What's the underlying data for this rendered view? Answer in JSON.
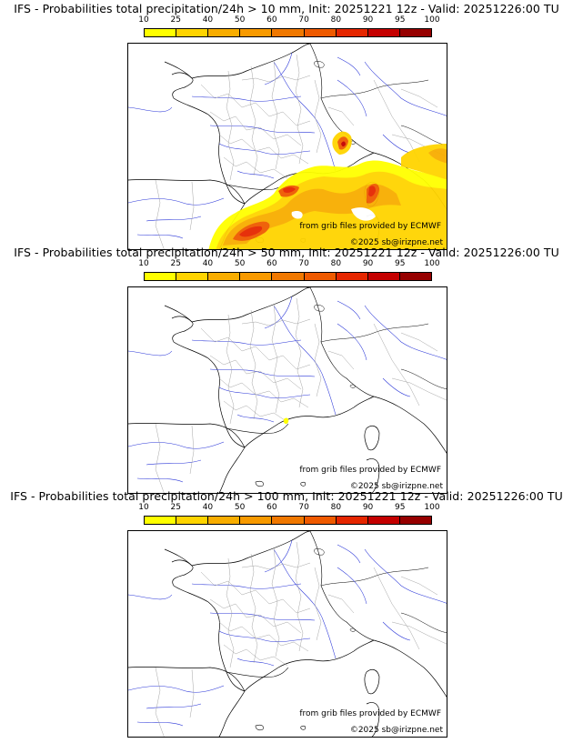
{
  "legend": {
    "ticks": [
      "10",
      "25",
      "40",
      "50",
      "60",
      "70",
      "80",
      "90",
      "95",
      "100"
    ],
    "colors": [
      "#ffff00",
      "#ffd400",
      "#f8ad00",
      "#f89a00",
      "#f07800",
      "#ef5a00",
      "#e52600",
      "#c40000",
      "#960000",
      "#5a0000"
    ]
  },
  "panels": [
    {
      "title": "IFS - Probabilities total precipitation/24h > 10 mm, Init: 20251221 12z - Valid: 20251226:00 TU",
      "credit_source": "from grib files provided by ECMWF",
      "credit_copyright": "©2025 sb@irizpne.net"
    },
    {
      "title": "IFS - Probabilities total precipitation/24h > 50 mm, Init: 20251221 12z - Valid: 20251226:00 TU",
      "credit_source": "from grib files provided by ECMWF",
      "credit_copyright": "©2025 sb@irizpne.net"
    },
    {
      "title": "IFS - Probabilities total precipitation/24h > 100 mm, Init: 20251221 12z - Valid: 20251226:00 TU",
      "credit_source": "from grib files provided by ECMWF",
      "credit_copyright": "©2025 sb@irizpne.net"
    }
  ]
}
